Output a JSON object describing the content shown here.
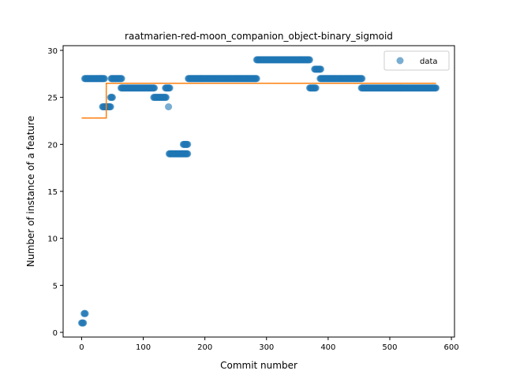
{
  "chart_data": {
    "type": "scatter",
    "title": "raatmarien-red-moon_companion_object-binary_sigmoid",
    "xlabel": "Commit number",
    "ylabel": "Number of instance of a feature",
    "xlim": [
      -30,
      605
    ],
    "ylim": [
      -0.5,
      30.5
    ],
    "xticks": [
      0,
      100,
      200,
      300,
      400,
      500,
      600
    ],
    "yticks": [
      0,
      5,
      10,
      15,
      20,
      25,
      30
    ],
    "grid": false,
    "legend": {
      "position": "top-right",
      "entries": [
        "data"
      ]
    },
    "colors": {
      "data": "#1f77b4",
      "fit": "#ff7f0e"
    },
    "data_segments": [
      {
        "x_start": 0,
        "x_end": 3,
        "y": 1
      },
      {
        "x_start": 4,
        "x_end": 6,
        "y": 2
      },
      {
        "x_start": 5,
        "x_end": 37,
        "y": 27
      },
      {
        "x_start": 34,
        "x_end": 47,
        "y": 24
      },
      {
        "x_start": 47,
        "x_end": 50,
        "y": 25
      },
      {
        "x_start": 48,
        "x_end": 65,
        "y": 27
      },
      {
        "x_start": 64,
        "x_end": 118,
        "y": 26
      },
      {
        "x_start": 117,
        "x_end": 137,
        "y": 25
      },
      {
        "x_start": 136,
        "x_end": 143,
        "y": 26
      },
      {
        "x_start": 141,
        "x_end": 141,
        "y": 24
      },
      {
        "x_start": 142,
        "x_end": 172,
        "y": 19
      },
      {
        "x_start": 165,
        "x_end": 172,
        "y": 20
      },
      {
        "x_start": 173,
        "x_end": 284,
        "y": 27
      },
      {
        "x_start": 284,
        "x_end": 370,
        "y": 29
      },
      {
        "x_start": 370,
        "x_end": 380,
        "y": 26
      },
      {
        "x_start": 378,
        "x_end": 388,
        "y": 28
      },
      {
        "x_start": 387,
        "x_end": 455,
        "y": 27
      },
      {
        "x_start": 454,
        "x_end": 575,
        "y": 26
      }
    ],
    "fit_series": {
      "x": [
        0,
        40,
        40,
        575
      ],
      "y": [
        22.8,
        22.8,
        26.5,
        26.5
      ]
    }
  }
}
